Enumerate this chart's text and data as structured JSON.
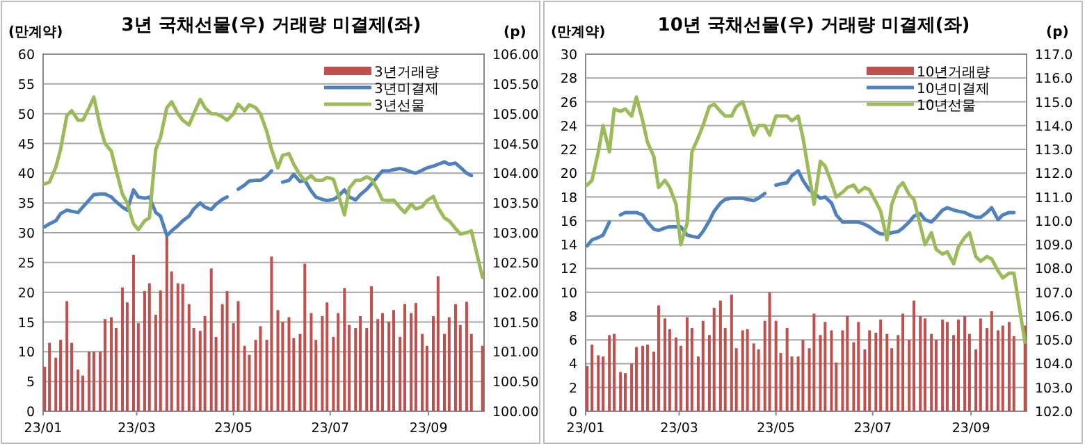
{
  "chart_data": [
    {
      "type": "bar",
      "title": "3년 국채선물(우) 거래량 미결제(좌)",
      "ylabel": "(만계약)",
      "y2label": "(p)",
      "grid": "y",
      "legend": "top right",
      "x": [
        "--01-02",
        "--01-05",
        "--01-09",
        "--01-12",
        "--01-16",
        "--01-19",
        "--01-23",
        "--01-26",
        "--01-30",
        "--02-02",
        "--02-06",
        "--02-09",
        "--02-13",
        "--02-16",
        "--02-20",
        "--02-23",
        "--02-27",
        "--03-02",
        "--03-06",
        "--03-09",
        "--03-13",
        "--03-16",
        "--03-20",
        "--03-23",
        "--03-27",
        "--03-30",
        "--04-03",
        "--04-06",
        "--04-10",
        "--04-13",
        "--04-17",
        "--04-20",
        "--04-24",
        "--04-27",
        "--05-01",
        "--05-04",
        "--05-08",
        "--05-11",
        "--05-15",
        "--05-18",
        "--05-22",
        "--05-25",
        "--05-29",
        "--06-01",
        "--06-05",
        "--06-08",
        "--06-12",
        "--06-15",
        "--06-19",
        "--06-22",
        "--06-26",
        "--06-29",
        "--07-03",
        "--07-06",
        "--07-10",
        "--07-13",
        "--07-17",
        "--07-20",
        "--07-24",
        "--07-27",
        "--07-31",
        "--08-03",
        "--08-07",
        "--08-10",
        "--08-14",
        "--08-17",
        "--08-21",
        "--08-24",
        "--08-28",
        "--08-31",
        "--09-04",
        "--09-07",
        "--09-11",
        "--09-14",
        "--09-18",
        "--09-21",
        "--09-25",
        "--09-28",
        "--10-05"
      ],
      "xlim": [
        "--01-01",
        "--10-06"
      ],
      "xticks": [
        {
          "value": "--01-01",
          "label": "23/01"
        },
        {
          "value": "--03-01",
          "label": "23/03"
        },
        {
          "value": "--05-01",
          "label": "23/05"
        },
        {
          "value": "--07-01",
          "label": "23/07"
        },
        {
          "value": "--09-01",
          "label": "23/09"
        }
      ],
      "ylim": [
        0,
        60
      ],
      "yticks": [
        0,
        5,
        10,
        15,
        20,
        25,
        30,
        35,
        40,
        45,
        50,
        55,
        60
      ],
      "y2lim": [
        100,
        106
      ],
      "y2ticks": [
        {
          "value": 100,
          "label": "100.00"
        },
        {
          "value": 100.5,
          "label": "100.50"
        },
        {
          "value": 101,
          "label": "101.00"
        },
        {
          "value": 101.5,
          "label": "101.50"
        },
        {
          "value": 102,
          "label": "102.00"
        },
        {
          "value": 102.5,
          "label": "102.50"
        },
        {
          "value": 103,
          "label": "103.00"
        },
        {
          "value": 103.5,
          "label": "103.50"
        },
        {
          "value": 104,
          "label": "104.00"
        },
        {
          "value": 104.5,
          "label": "104.50"
        },
        {
          "value": 105,
          "label": "105.00"
        },
        {
          "value": 105.5,
          "label": "105.50"
        },
        {
          "value": 106,
          "label": "106.00"
        }
      ],
      "series": [
        {
          "name": "3년거래량",
          "color": "#c0504d",
          "values": [
            7.5,
            11.5,
            9.0,
            12.0,
            18.5,
            11.5,
            7.0,
            6.0,
            10.0,
            10.0,
            10.0,
            15.5,
            15.8,
            14.0,
            20.8,
            18.3,
            26.3,
            14.8,
            20.2,
            21.5,
            16.2,
            20.3,
            30.0,
            23.5,
            21.5,
            21.4,
            18.0,
            14.0,
            13.5,
            16.0,
            24.0,
            12.5,
            18.0,
            20.2,
            14.8,
            18.5,
            11.0,
            9.5,
            12.0,
            14.3,
            12.0,
            26.0,
            17.0,
            15.0,
            15.8,
            12.3,
            13.0,
            24.8,
            16.5,
            12.0,
            16.0,
            18.3,
            12.5,
            16.5,
            20.7,
            14.5,
            14.0,
            16.0,
            14.0,
            21.0,
            15.5,
            16.5,
            15.0,
            17.0,
            12.5,
            18.0,
            16.5,
            18.2,
            13.0,
            11.0,
            16.0,
            22.7,
            13.0,
            15.8,
            18.0,
            14.5,
            18.4,
            13.0,
            11.0
          ]
        },
        {
          "name": "3년미결제",
          "type": "line",
          "color": "#4f81bd",
          "values": [
            31.0,
            31.5,
            32.0,
            33.2,
            33.8,
            33.6,
            33.4,
            34.3,
            35.5,
            36.4,
            36.5,
            36.5,
            36.0,
            35.2,
            34.3,
            33.8,
            37.2,
            36.0,
            35.8,
            36.0,
            33.4,
            32.8,
            29.5,
            30.3,
            31.2,
            32.0,
            32.8,
            34.0,
            35.0,
            34.3,
            33.9,
            34.8,
            35.6,
            36.0,
            null,
            37.3,
            38.0,
            38.7,
            38.8,
            38.8,
            39.5,
            40.4,
            null,
            38.5,
            38.8,
            39.8,
            38.6,
            38.8,
            37.0,
            36.0,
            35.6,
            35.4,
            35.6,
            36.1,
            37.2,
            36.0,
            35.5,
            36.4,
            37.3,
            38.2,
            39.5,
            40.4,
            40.4,
            40.6,
            40.8,
            40.6,
            40.2,
            40.0,
            40.5,
            40.9,
            41.2,
            41.5,
            41.9,
            41.5,
            41.7,
            41.0,
            40.0,
            39.6,
            null
          ]
        },
        {
          "name": "3년선물",
          "type": "line",
          "axis": "y2",
          "color": "#9bbb59",
          "values": [
            103.82,
            103.85,
            104.1,
            104.4,
            104.97,
            105.05,
            104.89,
            104.89,
            105.1,
            105.28,
            104.78,
            104.5,
            104.37,
            104.05,
            103.65,
            103.5,
            103.15,
            103.05,
            103.2,
            103.25,
            104.4,
            104.6,
            105.1,
            105.2,
            105.0,
            104.89,
            104.81,
            105.0,
            105.24,
            105.1,
            105.0,
            105.0,
            104.95,
            104.89,
            105.0,
            105.16,
            105.05,
            105.15,
            105.1,
            105.0,
            104.7,
            104.4,
            104.09,
            104.3,
            104.33,
            104.15,
            103.97,
            103.88,
            103.96,
            103.88,
            103.88,
            103.93,
            103.9,
            103.65,
            103.3,
            103.75,
            103.88,
            103.88,
            103.94,
            103.9,
            103.72,
            103.55,
            103.54,
            103.55,
            103.42,
            103.34,
            103.48,
            103.4,
            103.44,
            103.54,
            103.61,
            103.42,
            103.25,
            103.2,
            103.07,
            102.98,
            103.0,
            103.03,
            102.25
          ]
        }
      ]
    },
    {
      "type": "bar",
      "title": "10년 국채선물(우) 거래량 미결제(좌)",
      "ylabel": "(만계약)",
      "y2label": "(p)",
      "grid": "y",
      "legend": "top right",
      "x": [
        "--01-02",
        "--01-05",
        "--01-09",
        "--01-12",
        "--01-16",
        "--01-19",
        "--01-23",
        "--01-26",
        "--01-30",
        "--02-02",
        "--02-06",
        "--02-09",
        "--02-13",
        "--02-16",
        "--02-20",
        "--02-23",
        "--02-27",
        "--03-02",
        "--03-06",
        "--03-09",
        "--03-13",
        "--03-16",
        "--03-20",
        "--03-23",
        "--03-27",
        "--03-30",
        "--04-03",
        "--04-06",
        "--04-10",
        "--04-13",
        "--04-17",
        "--04-20",
        "--04-24",
        "--04-27",
        "--05-01",
        "--05-04",
        "--05-08",
        "--05-11",
        "--05-15",
        "--05-18",
        "--05-22",
        "--05-25",
        "--05-29",
        "--06-01",
        "--06-05",
        "--06-08",
        "--06-12",
        "--06-15",
        "--06-19",
        "--06-22",
        "--06-26",
        "--06-29",
        "--07-03",
        "--07-06",
        "--07-10",
        "--07-13",
        "--07-17",
        "--07-20",
        "--07-24",
        "--07-27",
        "--07-31",
        "--08-03",
        "--08-07",
        "--08-10",
        "--08-14",
        "--08-17",
        "--08-21",
        "--08-24",
        "--08-28",
        "--08-31",
        "--09-04",
        "--09-07",
        "--09-11",
        "--09-14",
        "--09-18",
        "--09-21",
        "--09-25",
        "--09-28",
        "--10-05"
      ],
      "xlim": [
        "--01-01",
        "--10-06"
      ],
      "xticks": [
        {
          "value": "--01-01",
          "label": "23/01"
        },
        {
          "value": "--03-01",
          "label": "23/03"
        },
        {
          "value": "--05-01",
          "label": "23/05"
        },
        {
          "value": "--07-01",
          "label": "23/07"
        },
        {
          "value": "--09-01",
          "label": "23/09"
        }
      ],
      "ylim": [
        0,
        30
      ],
      "yticks": [
        0,
        2,
        4,
        6,
        8,
        10,
        12,
        14,
        16,
        18,
        20,
        22,
        24,
        26,
        28,
        30
      ],
      "y2lim": [
        102,
        117
      ],
      "y2ticks": [
        {
          "value": 102,
          "label": "102.0"
        },
        {
          "value": 103,
          "label": "103.0"
        },
        {
          "value": 104,
          "label": "104.0"
        },
        {
          "value": 105,
          "label": "105.0"
        },
        {
          "value": 106,
          "label": "106.0"
        },
        {
          "value": 107,
          "label": "107.0"
        },
        {
          "value": 108,
          "label": "108.0"
        },
        {
          "value": 109,
          "label": "109.0"
        },
        {
          "value": 110,
          "label": "110.0"
        },
        {
          "value": 111,
          "label": "111.0"
        },
        {
          "value": 112,
          "label": "112.0"
        },
        {
          "value": 113,
          "label": "113.0"
        },
        {
          "value": 114,
          "label": "114.0"
        },
        {
          "value": 115,
          "label": "115.0"
        },
        {
          "value": 116,
          "label": "116.0"
        },
        {
          "value": 117,
          "label": "117.0"
        }
      ],
      "series": [
        {
          "name": "10년거래량",
          "color": "#c0504d",
          "values": [
            3.8,
            5.6,
            4.7,
            4.6,
            6.4,
            6.5,
            3.3,
            3.2,
            4.0,
            5.4,
            5.5,
            5.6,
            5.0,
            8.9,
            7.8,
            6.9,
            6.2,
            5.5,
            7.9,
            7.0,
            4.6,
            7.6,
            6.4,
            8.7,
            9.3,
            7.0,
            9.8,
            5.3,
            6.8,
            6.9,
            5.7,
            5.2,
            7.6,
            10.0,
            7.6,
            4.9,
            7.0,
            4.6,
            4.6,
            6.0,
            5.3,
            8.2,
            6.4,
            7.5,
            6.8,
            4.1,
            6.8,
            8.0,
            5.8,
            7.5,
            5.2,
            6.8,
            6.6,
            7.7,
            6.5,
            5.3,
            6.4,
            8.2,
            6.0,
            9.3,
            8.0,
            7.8,
            6.5,
            6.0,
            7.7,
            7.5,
            6.4,
            7.7,
            8.0,
            6.5,
            5.2,
            7.8,
            7.0,
            8.4,
            6.8,
            7.2,
            7.5,
            6.3,
            7.2
          ]
        },
        {
          "name": "10년미결제",
          "type": "line",
          "color": "#4f81bd",
          "values": [
            13.9,
            14.4,
            14.6,
            14.8,
            15.9,
            null,
            16.5,
            16.7,
            16.7,
            16.7,
            16.5,
            15.9,
            15.3,
            15.2,
            15.4,
            15.5,
            15.5,
            15.5,
            14.8,
            14.7,
            14.6,
            15.1,
            16.0,
            16.8,
            17.5,
            17.8,
            17.9,
            17.9,
            17.9,
            17.8,
            17.7,
            17.9,
            18.3,
            null,
            19.0,
            19.1,
            19.2,
            19.8,
            20.2,
            19.4,
            18.6,
            18.3,
            17.9,
            18.0,
            17.5,
            16.5,
            15.9,
            15.9,
            15.9,
            15.9,
            15.7,
            15.5,
            15.1,
            14.9,
            14.9,
            15.0,
            15.1,
            15.4,
            15.9,
            16.4,
            16.6,
            16.1,
            15.9,
            16.3,
            16.9,
            17.1,
            16.9,
            16.8,
            16.7,
            16.5,
            16.3,
            16.3,
            16.7,
            17.1,
            16.1,
            16.5,
            16.7,
            16.7,
            null
          ]
        },
        {
          "name": "10년선물",
          "type": "line",
          "axis": "y2",
          "color": "#9bbb59",
          "values": [
            111.5,
            111.7,
            112.9,
            114.0,
            112.9,
            114.7,
            114.6,
            114.7,
            114.4,
            115.2,
            114.2,
            113.3,
            112.7,
            111.4,
            111.7,
            111.4,
            110.7,
            109.0,
            109.9,
            112.9,
            113.5,
            114.0,
            114.8,
            114.9,
            114.6,
            114.4,
            114.4,
            114.8,
            115.0,
            114.4,
            113.6,
            114.0,
            114.0,
            113.6,
            114.4,
            114.4,
            114.4,
            114.2,
            114.4,
            113.5,
            111.9,
            110.7,
            112.5,
            112.3,
            111.6,
            111.0,
            111.2,
            111.4,
            111.5,
            111.2,
            111.4,
            111.3,
            110.8,
            110.4,
            109.2,
            110.7,
            111.4,
            111.6,
            111.1,
            110.9,
            109.8,
            109.0,
            109.5,
            108.8,
            108.6,
            108.7,
            108.2,
            108.9,
            109.3,
            109.5,
            108.5,
            108.3,
            108.5,
            108.4,
            107.9,
            107.6,
            107.8,
            107.8,
            104.9
          ]
        }
      ]
    }
  ]
}
